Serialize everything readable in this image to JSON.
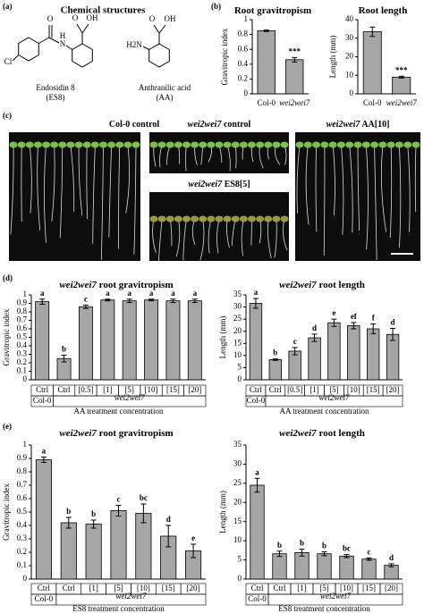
{
  "panel_a": {
    "label": "(a)",
    "title": "Chemical structures",
    "compounds": [
      {
        "name": "Endosidin 8",
        "abbr": "(ES8)",
        "atoms": [
          "Cl",
          "O",
          "N",
          "H",
          "O",
          "OH"
        ]
      },
      {
        "name": "Anthranilic acid",
        "abbr": "(AA)",
        "atoms": [
          "H2N",
          "O",
          "OH"
        ]
      }
    ]
  },
  "panel_c": {
    "label": "(c)",
    "photos": [
      {
        "strain": "Col-0",
        "condition": "control"
      },
      {
        "strain": "wei2wei7",
        "condition": "control"
      },
      {
        "strain": "wei2wei7",
        "condition": "ES8[5]"
      },
      {
        "strain": "wei2wei7",
        "condition": "AA[10]"
      }
    ]
  },
  "chart_data": [
    {
      "type": "bar",
      "panel": "(b)",
      "title": "Root gravitropism",
      "ylabel": "Gravitropic index",
      "categories": [
        "Col-0",
        "wei2wei7"
      ],
      "values": [
        0.85,
        0.46
      ],
      "errors": [
        0.01,
        0.03
      ],
      "letters": [
        null,
        "***"
      ],
      "color": "#a6a6a6",
      "ylim": [
        0,
        1
      ],
      "yticks": [
        0,
        0.2,
        0.4,
        0.6,
        0.8,
        1
      ]
    },
    {
      "type": "bar",
      "title": "Root length",
      "ylabel": "Length (mm)",
      "categories": [
        "Col-0",
        "wei2wei7"
      ],
      "values": [
        33.5,
        9
      ],
      "errors": [
        2.5,
        0.5
      ],
      "letters": [
        null,
        "***"
      ],
      "color": "#a6a6a6",
      "ylim": [
        0,
        40
      ],
      "yticks": [
        0,
        10,
        20,
        30,
        40
      ]
    },
    {
      "type": "bar",
      "panel": "(d)",
      "title_strain": "wei2wei7",
      "title": "root gravitropism",
      "ylabel": "Gravitropic index",
      "categories": [
        "Ctrl",
        "Ctrl",
        "[0.5]",
        "[1]",
        "[5]",
        "[10]",
        "[15]",
        "[20]"
      ],
      "group_labels": [
        "Col-0",
        "wei2wei7"
      ],
      "xlabel": "AA treatment concentration",
      "values": [
        0.92,
        0.25,
        0.86,
        0.94,
        0.93,
        0.94,
        0.93,
        0.93
      ],
      "errors": [
        0.03,
        0.04,
        0.02,
        0.01,
        0.02,
        0.01,
        0.02,
        0.02
      ],
      "letters": [
        "a",
        "b",
        "c",
        "a",
        "a",
        "a",
        "a",
        "a"
      ],
      "color": "#a6a6a6",
      "ylim": [
        0,
        1
      ],
      "yticks": [
        0,
        0.1,
        0.2,
        0.3,
        0.4,
        0.5,
        0.6,
        0.7,
        0.8,
        0.9,
        1
      ]
    },
    {
      "type": "bar",
      "title_strain": "wei2wei7",
      "title": "root length",
      "ylabel": "Length (mm)",
      "categories": [
        "Ctrl",
        "Ctrl",
        "[0.5]",
        "[1]",
        "[5]",
        "[10]",
        "[15]",
        "[20]"
      ],
      "group_labels": [
        "Col-0",
        "wei2wei7"
      ],
      "xlabel": "AA treatment concentration",
      "values": [
        31.5,
        8.3,
        11.8,
        17.3,
        23.5,
        22.3,
        21,
        18.7
      ],
      "errors": [
        2,
        0.3,
        1.5,
        1.5,
        1.5,
        1.3,
        2,
        2.5
      ],
      "letters": [
        "a",
        "b",
        "c",
        "d",
        "e",
        "ef",
        "f",
        "d"
      ],
      "color": "#a6a6a6",
      "ylim": [
        0,
        35
      ],
      "yticks": [
        0,
        5,
        10,
        15,
        20,
        25,
        30,
        35
      ]
    },
    {
      "type": "bar",
      "panel": "(e)",
      "title_strain": "wei2wei7",
      "title": "root gravitropism",
      "ylabel": "Gravitropic index",
      "categories": [
        "Ctrl",
        "Ctrl",
        "[1]",
        "[5]",
        "[10]",
        "[15]",
        "[20]"
      ],
      "group_labels": [
        "Col-0",
        "wei2wei7"
      ],
      "xlabel": "ES8 treatment concentration",
      "values": [
        0.89,
        0.42,
        0.41,
        0.51,
        0.49,
        0.32,
        0.21
      ],
      "errors": [
        0.02,
        0.04,
        0.03,
        0.04,
        0.07,
        0.08,
        0.05
      ],
      "letters": [
        "a",
        "b",
        "b",
        "c",
        "bc",
        "d",
        "e"
      ],
      "color": "#a6a6a6",
      "ylim": [
        0,
        1
      ],
      "yticks": [
        0,
        0.1,
        0.2,
        0.3,
        0.4,
        0.5,
        0.6,
        0.7,
        0.8,
        0.9,
        1
      ]
    },
    {
      "type": "bar",
      "title_strain": "wei2wei7",
      "title": "root length",
      "ylabel": "Length (mm)",
      "categories": [
        "Ctrl",
        "Ctrl",
        "[1]",
        "[5]",
        "[10]",
        "[15]",
        "[20]"
      ],
      "group_labels": [
        "Col-0",
        "wei2wei7"
      ],
      "xlabel": "ES8 treatment concentration",
      "values": [
        24.5,
        6.6,
        6.9,
        6.6,
        6.0,
        5.2,
        3.6
      ],
      "errors": [
        1.8,
        0.7,
        0.9,
        0.5,
        0.4,
        0.3,
        0.4
      ],
      "letters": [
        "a",
        "b",
        "b",
        "b",
        "bc",
        "c",
        "d"
      ],
      "color": "#a6a6a6",
      "ylim": [
        0,
        35
      ],
      "yticks": [
        0,
        5,
        10,
        15,
        20,
        25,
        30,
        35
      ]
    }
  ]
}
